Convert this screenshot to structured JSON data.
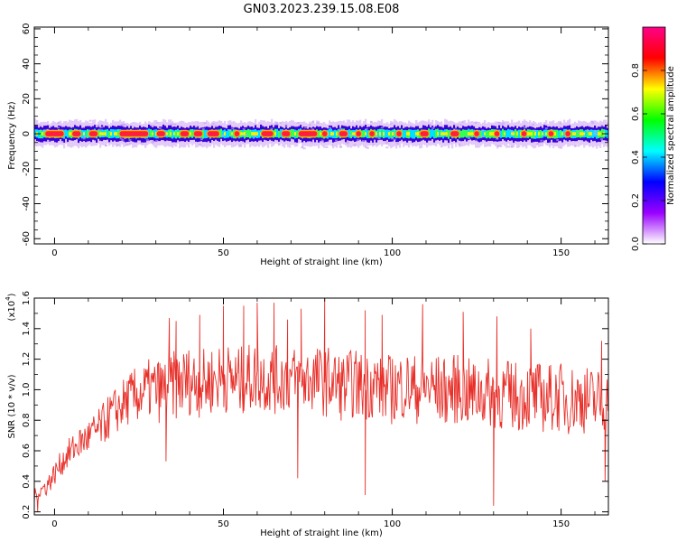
{
  "title": "GN03.2023.239.15.08.E08",
  "chart_data": [
    {
      "type": "heatmap",
      "xlabel": "Height of straight line (km)",
      "ylabel": "Frequency (Hz)",
      "xlim": [
        -6,
        164
      ],
      "ylim": [
        -63,
        61
      ],
      "x_ticks": [
        "0",
        "50",
        "100",
        "150"
      ],
      "y_ticks": [
        "-60",
        "-40",
        "-20",
        "0",
        "20",
        "40",
        "60"
      ],
      "colorbar": {
        "label": "Normalized spectral amplitude",
        "range": [
          0,
          1
        ],
        "ticks": [
          "0.0",
          "0.2",
          "0.4",
          "0.6",
          "0.8"
        ],
        "colors": [
          "#ffffff",
          "#9a00ff",
          "#0000ff",
          "#00ffff",
          "#00ff00",
          "#ffff00",
          "#ff0000",
          "#ff0088"
        ]
      },
      "band": {
        "center_hz": 0,
        "core_halfwidth_hz": 2,
        "outer_halfwidth_hz": 6,
        "peak_segments_km": [
          [
            -3,
            3
          ],
          [
            5,
            8
          ],
          [
            10,
            13
          ],
          [
            19,
            28
          ],
          [
            30,
            33
          ],
          [
            37,
            40
          ],
          [
            41,
            44
          ],
          [
            45,
            49
          ],
          [
            53,
            55
          ],
          [
            61,
            65
          ],
          [
            67,
            70
          ],
          [
            72,
            78
          ],
          [
            79,
            81
          ],
          [
            84,
            87
          ],
          [
            89,
            91
          ],
          [
            93,
            95
          ],
          [
            101,
            103
          ],
          [
            108,
            111
          ],
          [
            117,
            120
          ],
          [
            124,
            126
          ],
          [
            130,
            132
          ],
          [
            138,
            140
          ],
          [
            146,
            148
          ],
          [
            151,
            153
          ]
        ]
      }
    },
    {
      "type": "line",
      "xlabel": "Height of straight line (km)",
      "ylabel": "SNR (10 * v/v)",
      "scale_label": "(x10",
      "scale_exponent": "4",
      "xlim": [
        -6,
        164
      ],
      "ylim": [
        0.18,
        1.6
      ],
      "x_ticks": [
        "0",
        "50",
        "100",
        "150"
      ],
      "y_ticks": [
        "0.2",
        "0.4",
        "0.6",
        "0.8",
        "1.0",
        "1.2",
        "1.4",
        "1.6"
      ],
      "series": [
        {
          "color": "#e8302a",
          "x": [
            -6,
            -4,
            -2,
            0,
            2,
            4,
            6,
            8,
            10,
            12,
            14,
            16,
            18,
            20,
            22,
            24,
            26,
            28,
            30,
            32,
            34,
            36,
            38,
            40,
            42,
            44,
            46,
            48,
            50,
            52,
            54,
            56,
            58,
            60,
            62,
            64,
            66,
            68,
            70,
            72,
            74,
            76,
            78,
            80,
            82,
            84,
            86,
            88,
            90,
            92,
            94,
            96,
            98,
            100,
            102,
            104,
            106,
            108,
            110,
            112,
            114,
            116,
            118,
            120,
            122,
            124,
            126,
            128,
            130,
            132,
            134,
            136,
            138,
            140,
            142,
            144,
            146,
            148,
            150,
            152,
            154,
            156,
            158,
            160,
            162,
            164
          ],
          "y": [
            0.3,
            0.34,
            0.38,
            0.45,
            0.52,
            0.58,
            0.62,
            0.66,
            0.69,
            0.72,
            0.76,
            0.82,
            0.86,
            0.9,
            0.94,
            0.96,
            0.98,
            1.0,
            1.0,
            0.99,
            1.02,
            1.03,
            1.05,
            1.06,
            1.05,
            1.04,
            1.06,
            1.07,
            1.08,
            1.07,
            1.05,
            1.06,
            1.08,
            1.09,
            1.08,
            1.07,
            1.06,
            1.08,
            1.07,
            1.05,
            1.06,
            1.08,
            1.06,
            1.05,
            1.06,
            1.03,
            1.02,
            1.04,
            1.03,
            1.02,
            1.04,
            1.03,
            1.01,
            1.0,
            1.02,
            1.03,
            1.01,
            1.0,
            1.02,
            1.01,
            1.0,
            0.99,
            1.0,
            1.01,
            0.98,
            0.97,
            0.99,
            0.98,
            0.97,
            0.96,
            0.97,
            0.96,
            0.95,
            0.97,
            0.96,
            0.95,
            0.94,
            0.96,
            0.95,
            0.93,
            0.94,
            0.95,
            0.93,
            0.92,
            0.93,
            0.9
          ],
          "dips": [
            [
              -5,
              0.2
            ],
            [
              33,
              0.53
            ],
            [
              72,
              0.42
            ],
            [
              92,
              0.31
            ],
            [
              130,
              0.24
            ],
            [
              163,
              0.4
            ]
          ],
          "spikes": [
            [
              34,
              1.47
            ],
            [
              36,
              1.45
            ],
            [
              43,
              1.49
            ],
            [
              50,
              1.55
            ],
            [
              56,
              1.55
            ],
            [
              60,
              1.57
            ],
            [
              65,
              1.57
            ],
            [
              69,
              1.46
            ],
            [
              73,
              1.53
            ],
            [
              80,
              1.6
            ],
            [
              92,
              1.52
            ],
            [
              97,
              1.49
            ],
            [
              109,
              1.56
            ],
            [
              121,
              1.51
            ],
            [
              131,
              1.48
            ],
            [
              141,
              1.4
            ],
            [
              162,
              1.32
            ]
          ]
        }
      ]
    }
  ]
}
